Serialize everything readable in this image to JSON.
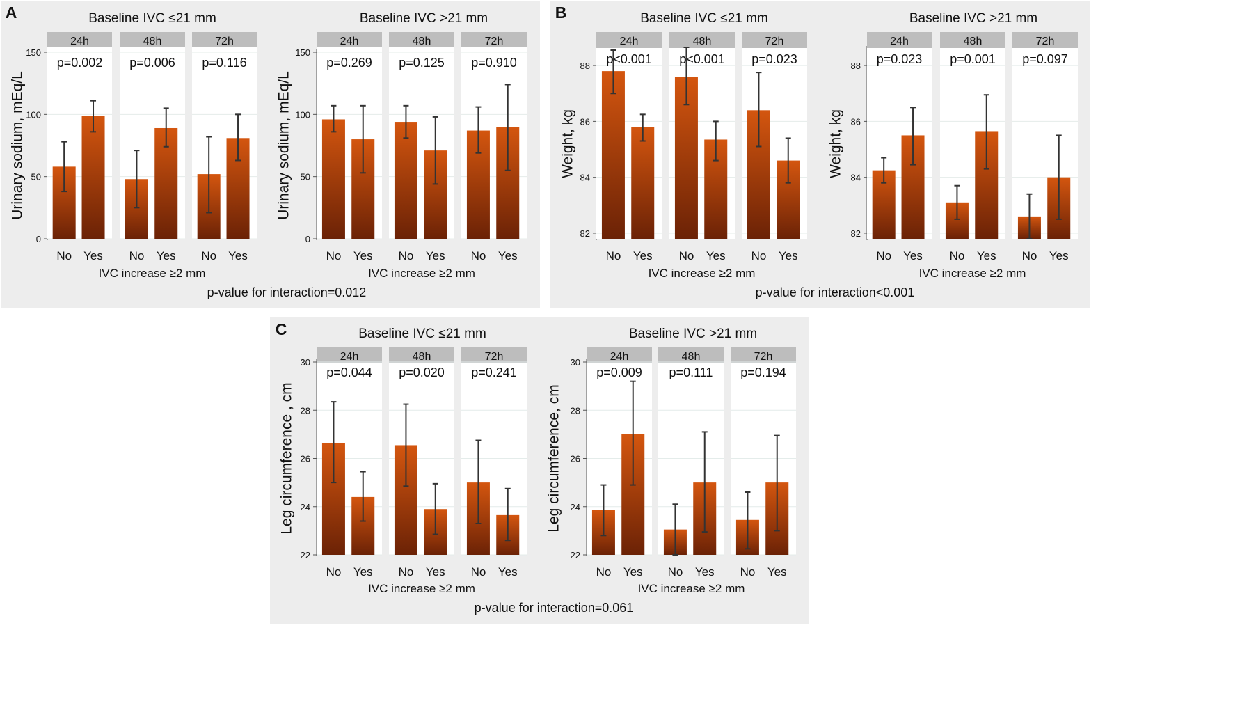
{
  "figure": {
    "colors": {
      "panel_bg": "#ededed",
      "plot_bg": "#ffffff",
      "strip_bg": "#bdbdbd",
      "grid": "#e4ecea",
      "bar_top": "#d4560f",
      "bar_bottom": "#6b2206",
      "error_bar": "#333333",
      "text": "#111111"
    }
  },
  "chart_data": [
    {
      "panel": "A",
      "type": "bar",
      "interaction_text": "p-value for interaction=0.012",
      "groups": [
        {
          "title": "Baseline IVC ≤21 mm",
          "ylabel": "Urinary sodium, mEq/L",
          "xlabel": "IVC increase ≥2 mm",
          "ylim": [
            0,
            150
          ],
          "yticks": [
            0,
            50,
            100,
            150
          ],
          "categories": [
            "No",
            "Yes"
          ],
          "facets": [
            {
              "label": "24h",
              "p": "p=0.002",
              "values": [
                58,
                99
              ],
              "err_low": [
                38,
                86
              ],
              "err_high": [
                78,
                111
              ]
            },
            {
              "label": "48h",
              "p": "p=0.006",
              "values": [
                48,
                89
              ],
              "err_low": [
                25,
                74
              ],
              "err_high": [
                71,
                105
              ]
            },
            {
              "label": "72h",
              "p": "p=0.116",
              "values": [
                52,
                81
              ],
              "err_low": [
                21,
                63
              ],
              "err_high": [
                82,
                100
              ]
            }
          ]
        },
        {
          "title": "Baseline IVC >21 mm",
          "ylabel": "Urinary sodium, mEq/L",
          "xlabel": "IVC increase ≥2 mm",
          "ylim": [
            0,
            150
          ],
          "yticks": [
            0,
            50,
            100,
            150
          ],
          "categories": [
            "No",
            "Yes"
          ],
          "facets": [
            {
              "label": "24h",
              "p": "p=0.269",
              "values": [
                96,
                80
              ],
              "err_low": [
                86,
                53
              ],
              "err_high": [
                107,
                107
              ]
            },
            {
              "label": "48h",
              "p": "p=0.125",
              "values": [
                94,
                71
              ],
              "err_low": [
                81,
                44
              ],
              "err_high": [
                107,
                98
              ]
            },
            {
              "label": "72h",
              "p": "p=0.910",
              "values": [
                87,
                90
              ],
              "err_low": [
                69,
                55
              ],
              "err_high": [
                106,
                124
              ]
            }
          ]
        }
      ]
    },
    {
      "panel": "B",
      "type": "bar",
      "interaction_text": "p-value for interaction<0.001",
      "groups": [
        {
          "title": "Baseline IVC ≤21 mm",
          "ylabel": "Weight, kg",
          "xlabel": "IVC increase ≥2 mm",
          "ylim": [
            81.8,
            88.6
          ],
          "yticks": [
            82,
            84,
            86,
            88
          ],
          "categories": [
            "No",
            "Yes"
          ],
          "facets": [
            {
              "label": "24h",
              "p": "p<0.001",
              "values": [
                87.8,
                85.8
              ],
              "err_low": [
                87.0,
                85.3
              ],
              "err_high": [
                88.55,
                86.25
              ]
            },
            {
              "label": "48h",
              "p": "p<0.001",
              "values": [
                87.6,
                85.35
              ],
              "err_low": [
                86.6,
                84.6
              ],
              "err_high": [
                88.65,
                86.0
              ]
            },
            {
              "label": "72h",
              "p": "p=0.023",
              "values": [
                86.4,
                84.6
              ],
              "err_low": [
                85.1,
                83.8
              ],
              "err_high": [
                87.75,
                85.4
              ]
            }
          ]
        },
        {
          "title": "Baseline IVC >21 mm",
          "ylabel": "Weight, kg",
          "xlabel": "IVC increase ≥2 mm",
          "ylim": [
            81.8,
            88.6
          ],
          "yticks": [
            82,
            84,
            86,
            88
          ],
          "categories": [
            "No",
            "Yes"
          ],
          "facets": [
            {
              "label": "24h",
              "p": "p=0.023",
              "values": [
                84.25,
                85.5
              ],
              "err_low": [
                83.8,
                84.45
              ],
              "err_high": [
                84.7,
                86.5
              ]
            },
            {
              "label": "48h",
              "p": "p=0.001",
              "values": [
                83.1,
                85.65
              ],
              "err_low": [
                82.5,
                84.3
              ],
              "err_high": [
                83.7,
                86.95
              ]
            },
            {
              "label": "72h",
              "p": "p=0.097",
              "values": [
                82.6,
                84.0
              ],
              "err_low": [
                81.8,
                82.5
              ],
              "err_high": [
                83.4,
                85.5
              ]
            }
          ]
        }
      ]
    },
    {
      "panel": "C",
      "type": "bar",
      "interaction_text": "p-value for interaction=0.061",
      "groups": [
        {
          "title": "Baseline IVC ≤21 mm",
          "ylabel": "Leg circumference , cm",
          "xlabel": "IVC increase ≥2 mm",
          "ylim": [
            22,
            30
          ],
          "yticks": [
            22,
            24,
            26,
            28,
            30
          ],
          "categories": [
            "No",
            "Yes"
          ],
          "facets": [
            {
              "label": "24h",
              "p": "p=0.044",
              "values": [
                26.65,
                24.4
              ],
              "err_low": [
                25.0,
                23.4
              ],
              "err_high": [
                28.35,
                25.45
              ]
            },
            {
              "label": "48h",
              "p": "p=0.020",
              "values": [
                26.55,
                23.9
              ],
              "err_low": [
                24.85,
                22.85
              ],
              "err_high": [
                28.25,
                24.95
              ]
            },
            {
              "label": "72h",
              "p": "p=0.241",
              "values": [
                25.0,
                23.65
              ],
              "err_low": [
                23.3,
                22.6
              ],
              "err_high": [
                26.75,
                24.75
              ]
            }
          ]
        },
        {
          "title": "Baseline IVC >21 mm",
          "ylabel": "Leg circumference, cm",
          "xlabel": "IVC increase ≥2 mm",
          "ylim": [
            22,
            30
          ],
          "yticks": [
            22,
            24,
            26,
            28,
            30
          ],
          "categories": [
            "No",
            "Yes"
          ],
          "facets": [
            {
              "label": "24h",
              "p": "p=0.009",
              "values": [
                23.85,
                27.0
              ],
              "err_low": [
                22.8,
                24.9
              ],
              "err_high": [
                24.9,
                29.2
              ]
            },
            {
              "label": "48h",
              "p": "p=0.111",
              "values": [
                23.05,
                25.0
              ],
              "err_low": [
                22.0,
                22.95
              ],
              "err_high": [
                24.1,
                27.1
              ]
            },
            {
              "label": "72h",
              "p": "p=0.194",
              "values": [
                23.45,
                25.0
              ],
              "err_low": [
                22.25,
                23.0
              ],
              "err_high": [
                24.6,
                26.95
              ]
            }
          ]
        }
      ]
    }
  ]
}
